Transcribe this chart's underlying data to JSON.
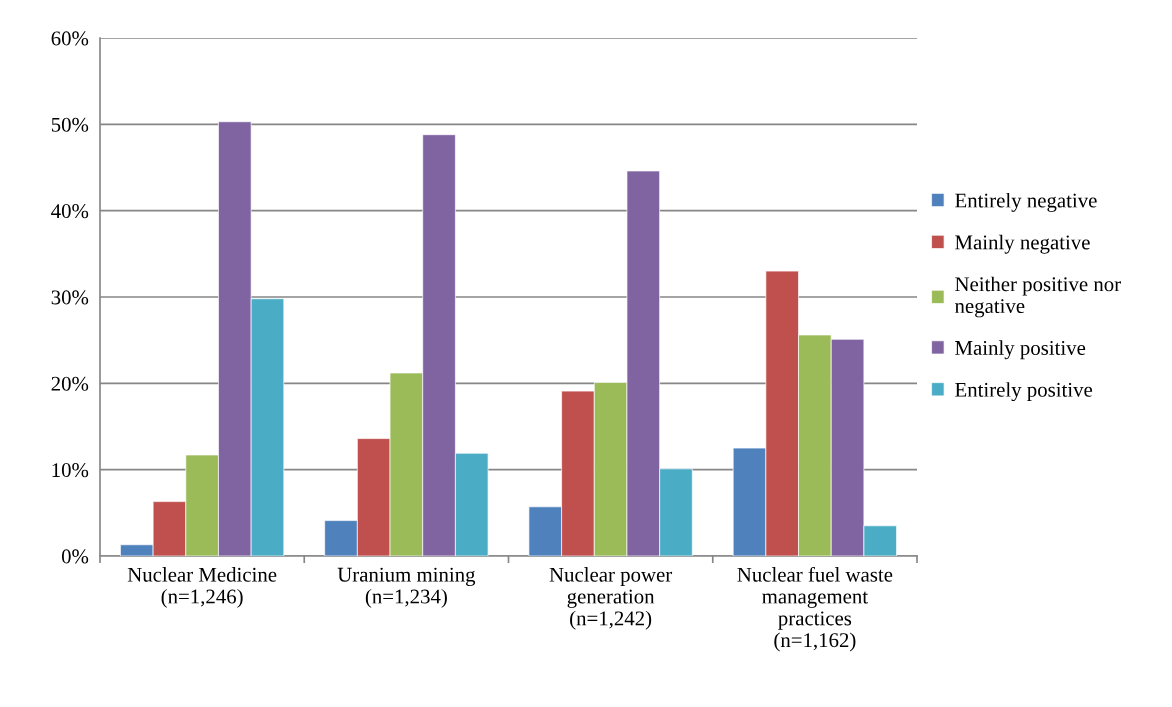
{
  "chart_data": {
    "type": "bar",
    "categories": [
      "Nuclear Medicine\n(n=1,246)",
      "Uranium mining\n(n=1,234)",
      "Nuclear power\ngeneration\n(n=1,242)",
      "Nuclear fuel waste\nmanagement\npractices\n(n=1,162)"
    ],
    "series": [
      {
        "name": "Entirely negative",
        "color": "#4f81bd",
        "values": [
          1.3,
          4.1,
          5.7,
          12.5
        ]
      },
      {
        "name": "Mainly negative",
        "color": "#c0504d",
        "values": [
          6.3,
          13.6,
          19.1,
          33.0
        ]
      },
      {
        "name": "Neither positive nor\nnegative",
        "color": "#9bbb59",
        "values": [
          11.7,
          21.2,
          20.1,
          25.6
        ]
      },
      {
        "name": "Mainly positive",
        "color": "#8064a2",
        "values": [
          50.3,
          48.8,
          44.6,
          25.1
        ]
      },
      {
        "name": "Entirely positive",
        "color": "#4bacc6",
        "values": [
          29.8,
          11.9,
          10.1,
          3.5
        ]
      }
    ],
    "ylim": [
      0,
      60
    ],
    "yticks": [
      {
        "value": 0,
        "label": "0%"
      },
      {
        "value": 10,
        "label": "10%"
      },
      {
        "value": 20,
        "label": "20%"
      },
      {
        "value": 30,
        "label": "30%"
      },
      {
        "value": 40,
        "label": "40%"
      },
      {
        "value": 50,
        "label": "50%"
      },
      {
        "value": 60,
        "label": "60%"
      }
    ],
    "grid": "y",
    "legend": "right"
  }
}
